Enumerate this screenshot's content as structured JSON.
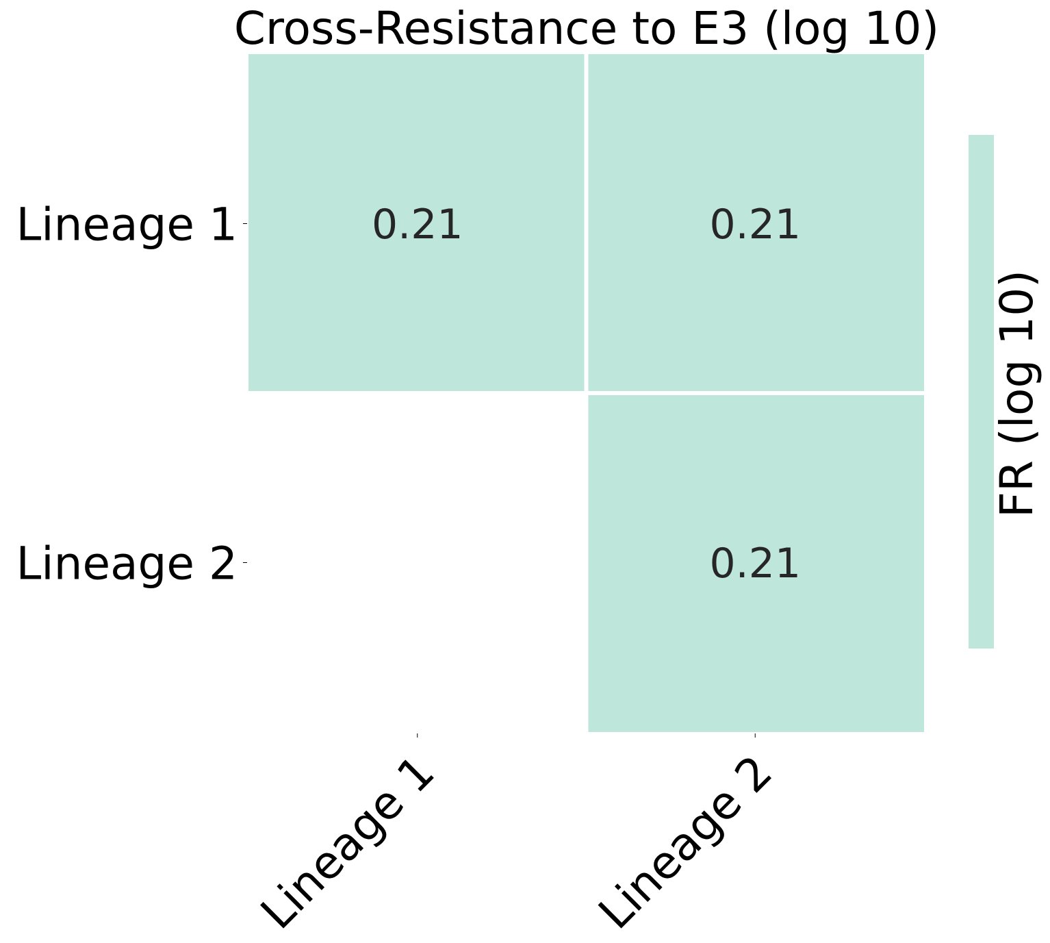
{
  "chart_data": {
    "type": "heatmap",
    "title": "Cross-Resistance to E3 (log 10)",
    "x_categories": [
      "Lineage 1",
      "Lineage 2"
    ],
    "y_categories": [
      "Lineage 1",
      "Lineage 2"
    ],
    "cells": [
      {
        "row": 0,
        "col": 0,
        "value": 0.21,
        "label": "0.21"
      },
      {
        "row": 0,
        "col": 1,
        "value": 0.21,
        "label": "0.21"
      },
      {
        "row": 1,
        "col": 1,
        "value": 0.21,
        "label": "0.21"
      }
    ],
    "masked_cells": [
      {
        "row": 1,
        "col": 0
      }
    ],
    "colorbar": {
      "label": "FR (log 10)",
      "show_ticks": false
    },
    "colors": {
      "cell_fill": "#bee6db",
      "cell_text": "#262626",
      "label_text": "#000000",
      "cell_border": "#ffffff"
    },
    "grid": false,
    "legend_placement": "right"
  }
}
